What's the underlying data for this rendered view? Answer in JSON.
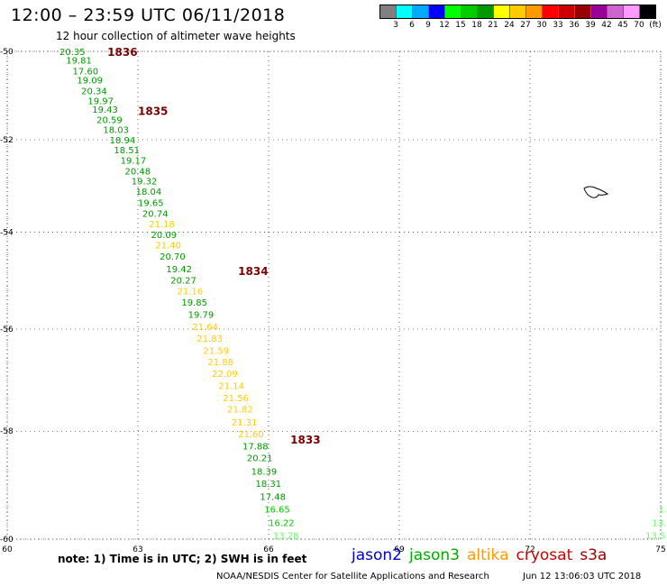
{
  "header": {
    "title": "12:00 – 23:59 UTC 06/11/2018",
    "subtitle": "12 hour collection of altimeter wave heights"
  },
  "legend": {
    "colors": [
      "#808080",
      "#00ffff",
      "#00aaff",
      "#0000ff",
      "#00ff00",
      "#00cc00",
      "#009900",
      "#ffff00",
      "#ffcc00",
      "#ff9900",
      "#ff0000",
      "#cc0000",
      "#990000",
      "#990099",
      "#cc66cc",
      "#ff99ff",
      "#000000"
    ],
    "labels": [
      "3",
      "6",
      "9",
      "12",
      "15",
      "18",
      "21",
      "24",
      "27",
      "30",
      "33",
      "36",
      "39",
      "42",
      "45",
      "70",
      "(ft)"
    ],
    "label_positions": [
      1,
      2,
      3,
      4,
      5,
      6,
      7,
      8,
      9,
      10,
      11,
      12,
      13,
      14,
      15,
      16,
      17
    ]
  },
  "map": {
    "lon_ticks": [
      "60",
      "63",
      "66",
      "69",
      "72",
      "75"
    ],
    "lat_ticks": [
      "-50",
      "-52",
      "-54",
      "-56",
      "-58",
      "-60"
    ],
    "lon_values": [
      60,
      63,
      66,
      69,
      72,
      75
    ],
    "lat_values": [
      -50,
      -52,
      -54,
      -56,
      -58,
      -60
    ]
  },
  "tracks": [
    {
      "label": "1836",
      "lat": -50.0,
      "lon": 62.3
    },
    {
      "label": "1835",
      "lat": -51.35,
      "lon": 63.0
    },
    {
      "label": "1834",
      "lat": -54.8,
      "lon": 65.3
    },
    {
      "label": "1833",
      "lat": -58.15,
      "lon": 66.5
    }
  ],
  "readings": [
    {
      "v": "20.35",
      "lat": -50.0,
      "lon": 61.2,
      "c": "#009900"
    },
    {
      "v": "19.81",
      "lat": -50.2,
      "lon": 61.35,
      "c": "#009900"
    },
    {
      "v": "17.60",
      "lat": -50.45,
      "lon": 61.5,
      "c": "#009900"
    },
    {
      "v": "19.09",
      "lat": -50.65,
      "lon": 61.6,
      "c": "#009900"
    },
    {
      "v": "20.34",
      "lat": -50.9,
      "lon": 61.7,
      "c": "#009900"
    },
    {
      "v": "19.97",
      "lat": -51.12,
      "lon": 61.85,
      "c": "#009900"
    },
    {
      "v": "19.43",
      "lat": -51.32,
      "lon": 61.95,
      "c": "#009900"
    },
    {
      "v": "20.59",
      "lat": -51.55,
      "lon": 62.05,
      "c": "#009900"
    },
    {
      "v": "18.03",
      "lat": -51.77,
      "lon": 62.2,
      "c": "#009900"
    },
    {
      "v": "18.94",
      "lat": -52.0,
      "lon": 62.35,
      "c": "#009900"
    },
    {
      "v": "18.51",
      "lat": -52.22,
      "lon": 62.45,
      "c": "#009900"
    },
    {
      "v": "19.17",
      "lat": -52.45,
      "lon": 62.6,
      "c": "#009900"
    },
    {
      "v": "20.48",
      "lat": -52.68,
      "lon": 62.7,
      "c": "#009900"
    },
    {
      "v": "19.32",
      "lat": -52.9,
      "lon": 62.85,
      "c": "#009900"
    },
    {
      "v": "18.04",
      "lat": -53.12,
      "lon": 62.95,
      "c": "#009900"
    },
    {
      "v": "19.65",
      "lat": -53.37,
      "lon": 63.0,
      "c": "#009900"
    },
    {
      "v": "20.74",
      "lat": -53.6,
      "lon": 63.1,
      "c": "#009900"
    },
    {
      "v": "21.18",
      "lat": -53.82,
      "lon": 63.25,
      "c": "#ffcc00"
    },
    {
      "v": "20.09",
      "lat": -54.05,
      "lon": 63.3,
      "c": "#009900"
    },
    {
      "v": "21.40",
      "lat": -54.27,
      "lon": 63.4,
      "c": "#ffcc00"
    },
    {
      "v": "20.70",
      "lat": -54.5,
      "lon": 63.5,
      "c": "#009900"
    },
    {
      "v": "19.42",
      "lat": -54.77,
      "lon": 63.65,
      "c": "#009900"
    },
    {
      "v": "20.27",
      "lat": -55.0,
      "lon": 63.75,
      "c": "#009900"
    },
    {
      "v": "21.16",
      "lat": -55.22,
      "lon": 63.9,
      "c": "#ffcc00"
    },
    {
      "v": "19.85",
      "lat": -55.45,
      "lon": 64.0,
      "c": "#009900"
    },
    {
      "v": "19.79",
      "lat": -55.7,
      "lon": 64.15,
      "c": "#009900"
    },
    {
      "v": "21.64",
      "lat": -55.95,
      "lon": 64.25,
      "c": "#ffcc00"
    },
    {
      "v": "21.83",
      "lat": -56.18,
      "lon": 64.35,
      "c": "#ffcc00"
    },
    {
      "v": "21.59",
      "lat": -56.42,
      "lon": 64.5,
      "c": "#ffcc00"
    },
    {
      "v": "21.88",
      "lat": -56.65,
      "lon": 64.6,
      "c": "#ffcc00"
    },
    {
      "v": "22.09",
      "lat": -56.88,
      "lon": 64.7,
      "c": "#ffcc00"
    },
    {
      "v": "21.14",
      "lat": -57.12,
      "lon": 64.85,
      "c": "#ffcc00"
    },
    {
      "v": "21.56",
      "lat": -57.35,
      "lon": 64.95,
      "c": "#ffcc00"
    },
    {
      "v": "21.82",
      "lat": -57.57,
      "lon": 65.05,
      "c": "#ffcc00"
    },
    {
      "v": "21.31",
      "lat": -57.82,
      "lon": 65.15,
      "c": "#ffcc00"
    },
    {
      "v": "21.60",
      "lat": -58.05,
      "lon": 65.3,
      "c": "#ffcc00"
    },
    {
      "v": "17.88",
      "lat": -58.28,
      "lon": 65.4,
      "c": "#009900"
    },
    {
      "v": "20.21",
      "lat": -58.5,
      "lon": 65.5,
      "c": "#009900"
    },
    {
      "v": "18.39",
      "lat": -58.75,
      "lon": 65.6,
      "c": "#009900"
    },
    {
      "v": "18.31",
      "lat": -58.98,
      "lon": 65.7,
      "c": "#009900"
    },
    {
      "v": "17.48",
      "lat": -59.22,
      "lon": 65.8,
      "c": "#009900"
    },
    {
      "v": "16.65",
      "lat": -59.45,
      "lon": 65.9,
      "c": "#00cc00"
    },
    {
      "v": "16.22",
      "lat": -59.7,
      "lon": 66.0,
      "c": "#00cc00"
    },
    {
      "v": "13.28",
      "lat": -59.93,
      "lon": 66.1,
      "c": "#66ff66"
    },
    {
      "v": "13.5",
      "lat": -59.93,
      "lon": 74.65,
      "c": "#66ff66"
    },
    {
      "v": "13.",
      "lat": -59.7,
      "lon": 74.8,
      "c": "#66ff66"
    },
    {
      "v": "1.",
      "lat": -59.45,
      "lon": 74.95,
      "c": "#66ff66"
    }
  ],
  "footer": {
    "note": "note:  1) Time is in UTC;  2) SWH is in feet",
    "missions": [
      {
        "name": "jason2",
        "color": "#0000cc"
      },
      {
        "name": "jason3",
        "color": "#00aa00"
      },
      {
        "name": "altika",
        "color": "#ff9900"
      },
      {
        "name": "cryosat",
        "color": "#cc0000"
      },
      {
        "name": "s3a",
        "color": "#990000"
      }
    ],
    "credit": "NOAA/NESDIS Center for Satellite Applications and Research",
    "timestamp": "Jun 12 13:06:03 UTC 2018"
  }
}
